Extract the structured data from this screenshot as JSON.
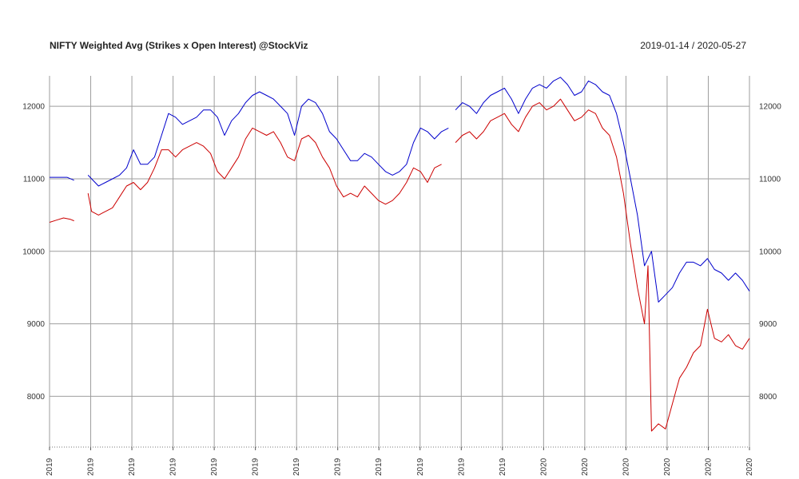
{
  "title": "NIFTY Weighted Avg (Strikes x Open Interest) @StockViz",
  "date_range": "2019-01-14 / 2020-05-27",
  "chart_data": {
    "type": "line",
    "title": "NIFTY Weighted Avg (Strikes x Open Interest) @StockViz",
    "subtitle": "2019-01-14 / 2020-05-27",
    "ylim": [
      7300,
      12420
    ],
    "y_ticks": [
      8000,
      9000,
      10000,
      11000,
      12000
    ],
    "x_tick_labels": [
      "2019",
      "2019",
      "2019",
      "2019",
      "2019",
      "2019",
      "2019",
      "2019",
      "2019",
      "2019",
      "2019",
      "2019",
      "2020",
      "2020",
      "2020",
      "2020",
      "2020",
      "2020"
    ],
    "grid": true,
    "colors": {
      "upper": "#0000cc",
      "lower": "#cc0000",
      "grid": "#9e9e9e"
    },
    "series": [
      {
        "key": "upper",
        "color": "#0000cc",
        "segments": [
          [
            [
              0,
              11020
            ],
            [
              0.025,
              11020
            ],
            [
              0.035,
              10980
            ]
          ],
          [
            [
              0.055,
              11050
            ],
            [
              0.07,
              10900
            ],
            [
              0.08,
              10950
            ],
            [
              0.09,
              11000
            ],
            [
              0.1,
              11050
            ],
            [
              0.11,
              11150
            ],
            [
              0.12,
              11400
            ],
            [
              0.13,
              11200
            ],
            [
              0.14,
              11200
            ],
            [
              0.15,
              11300
            ],
            [
              0.16,
              11600
            ],
            [
              0.17,
              11900
            ],
            [
              0.18,
              11850
            ],
            [
              0.19,
              11750
            ],
            [
              0.2,
              11800
            ],
            [
              0.21,
              11850
            ],
            [
              0.22,
              11950
            ],
            [
              0.23,
              11950
            ],
            [
              0.24,
              11850
            ],
            [
              0.25,
              11600
            ],
            [
              0.26,
              11800
            ],
            [
              0.27,
              11900
            ],
            [
              0.28,
              12050
            ],
            [
              0.29,
              12150
            ],
            [
              0.3,
              12200
            ],
            [
              0.31,
              12150
            ],
            [
              0.32,
              12100
            ],
            [
              0.33,
              12000
            ],
            [
              0.34,
              11900
            ],
            [
              0.35,
              11600
            ],
            [
              0.36,
              12000
            ],
            [
              0.37,
              12100
            ],
            [
              0.38,
              12050
            ],
            [
              0.39,
              11900
            ],
            [
              0.4,
              11650
            ],
            [
              0.41,
              11550
            ],
            [
              0.42,
              11400
            ],
            [
              0.43,
              11250
            ],
            [
              0.44,
              11250
            ],
            [
              0.45,
              11350
            ],
            [
              0.46,
              11300
            ],
            [
              0.47,
              11200
            ],
            [
              0.48,
              11100
            ],
            [
              0.49,
              11050
            ],
            [
              0.5,
              11100
            ],
            [
              0.51,
              11200
            ],
            [
              0.52,
              11500
            ],
            [
              0.53,
              11700
            ],
            [
              0.54,
              11650
            ],
            [
              0.55,
              11550
            ],
            [
              0.56,
              11650
            ],
            [
              0.57,
              11700
            ]
          ],
          [
            [
              0.58,
              11950
            ],
            [
              0.59,
              12050
            ],
            [
              0.6,
              12000
            ],
            [
              0.61,
              11900
            ],
            [
              0.62,
              12050
            ],
            [
              0.63,
              12150
            ],
            [
              0.64,
              12200
            ],
            [
              0.65,
              12250
            ],
            [
              0.66,
              12100
            ],
            [
              0.67,
              11900
            ],
            [
              0.68,
              12100
            ],
            [
              0.69,
              12250
            ],
            [
              0.7,
              12300
            ],
            [
              0.71,
              12250
            ],
            [
              0.72,
              12350
            ],
            [
              0.73,
              12400
            ],
            [
              0.74,
              12300
            ],
            [
              0.75,
              12150
            ],
            [
              0.76,
              12200
            ],
            [
              0.77,
              12350
            ],
            [
              0.78,
              12300
            ],
            [
              0.79,
              12200
            ],
            [
              0.8,
              12150
            ],
            [
              0.81,
              11900
            ],
            [
              0.82,
              11500
            ],
            [
              0.83,
              11000
            ],
            [
              0.84,
              10500
            ],
            [
              0.85,
              9800
            ],
            [
              0.86,
              10000
            ],
            [
              0.87,
              9300
            ],
            [
              0.88,
              9400
            ],
            [
              0.89,
              9500
            ],
            [
              0.9,
              9700
            ],
            [
              0.91,
              9850
            ],
            [
              0.92,
              9850
            ],
            [
              0.93,
              9800
            ],
            [
              0.94,
              9900
            ],
            [
              0.95,
              9750
            ],
            [
              0.96,
              9700
            ],
            [
              0.97,
              9600
            ],
            [
              0.98,
              9700
            ],
            [
              0.99,
              9600
            ],
            [
              1,
              9450
            ]
          ]
        ]
      },
      {
        "key": "lower",
        "color": "#cc0000",
        "segments": [
          [
            [
              0,
              10400
            ],
            [
              0.01,
              10430
            ],
            [
              0.02,
              10460
            ],
            [
              0.03,
              10440
            ],
            [
              0.035,
              10420
            ]
          ],
          [
            [
              0.055,
              10800
            ],
            [
              0.06,
              10550
            ],
            [
              0.07,
              10500
            ],
            [
              0.08,
              10550
            ],
            [
              0.09,
              10600
            ],
            [
              0.1,
              10750
            ],
            [
              0.11,
              10900
            ],
            [
              0.12,
              10950
            ],
            [
              0.13,
              10850
            ],
            [
              0.14,
              10950
            ],
            [
              0.15,
              11150
            ],
            [
              0.16,
              11400
            ],
            [
              0.17,
              11400
            ],
            [
              0.18,
              11300
            ],
            [
              0.19,
              11400
            ],
            [
              0.2,
              11450
            ],
            [
              0.21,
              11500
            ],
            [
              0.22,
              11450
            ],
            [
              0.23,
              11350
            ],
            [
              0.24,
              11100
            ],
            [
              0.25,
              11000
            ],
            [
              0.26,
              11150
            ],
            [
              0.27,
              11300
            ],
            [
              0.28,
              11550
            ],
            [
              0.29,
              11700
            ],
            [
              0.3,
              11650
            ],
            [
              0.31,
              11600
            ],
            [
              0.32,
              11650
            ],
            [
              0.33,
              11500
            ],
            [
              0.34,
              11300
            ],
            [
              0.35,
              11250
            ],
            [
              0.36,
              11550
            ],
            [
              0.37,
              11600
            ],
            [
              0.38,
              11500
            ],
            [
              0.39,
              11300
            ],
            [
              0.4,
              11150
            ],
            [
              0.41,
              10900
            ],
            [
              0.42,
              10750
            ],
            [
              0.43,
              10800
            ],
            [
              0.44,
              10750
            ],
            [
              0.45,
              10900
            ],
            [
              0.46,
              10800
            ],
            [
              0.47,
              10700
            ],
            [
              0.48,
              10650
            ],
            [
              0.49,
              10700
            ],
            [
              0.5,
              10800
            ],
            [
              0.51,
              10950
            ],
            [
              0.52,
              11150
            ],
            [
              0.53,
              11100
            ],
            [
              0.54,
              10950
            ],
            [
              0.55,
              11150
            ],
            [
              0.56,
              11200
            ]
          ],
          [
            [
              0.58,
              11500
            ],
            [
              0.59,
              11600
            ],
            [
              0.6,
              11650
            ],
            [
              0.61,
              11550
            ],
            [
              0.62,
              11650
            ],
            [
              0.63,
              11800
            ],
            [
              0.64,
              11850
            ],
            [
              0.65,
              11900
            ],
            [
              0.66,
              11750
            ],
            [
              0.67,
              11650
            ],
            [
              0.68,
              11850
            ],
            [
              0.69,
              12000
            ],
            [
              0.7,
              12050
            ],
            [
              0.71,
              11950
            ],
            [
              0.72,
              12000
            ],
            [
              0.73,
              12100
            ],
            [
              0.74,
              11950
            ],
            [
              0.75,
              11800
            ],
            [
              0.76,
              11850
            ],
            [
              0.77,
              11950
            ],
            [
              0.78,
              11900
            ],
            [
              0.79,
              11700
            ],
            [
              0.8,
              11600
            ],
            [
              0.81,
              11300
            ],
            [
              0.82,
              10800
            ],
            [
              0.83,
              10100
            ],
            [
              0.84,
              9500
            ],
            [
              0.85,
              9000
            ],
            [
              0.855,
              9800
            ],
            [
              0.86,
              7520
            ],
            [
              0.87,
              7620
            ],
            [
              0.88,
              7550
            ],
            [
              0.89,
              7900
            ],
            [
              0.9,
              8250
            ],
            [
              0.91,
              8400
            ],
            [
              0.92,
              8600
            ],
            [
              0.93,
              8700
            ],
            [
              0.94,
              9200
            ],
            [
              0.95,
              8800
            ],
            [
              0.96,
              8750
            ],
            [
              0.97,
              8850
            ],
            [
              0.98,
              8700
            ],
            [
              0.99,
              8650
            ],
            [
              1,
              8800
            ]
          ]
        ]
      }
    ]
  }
}
